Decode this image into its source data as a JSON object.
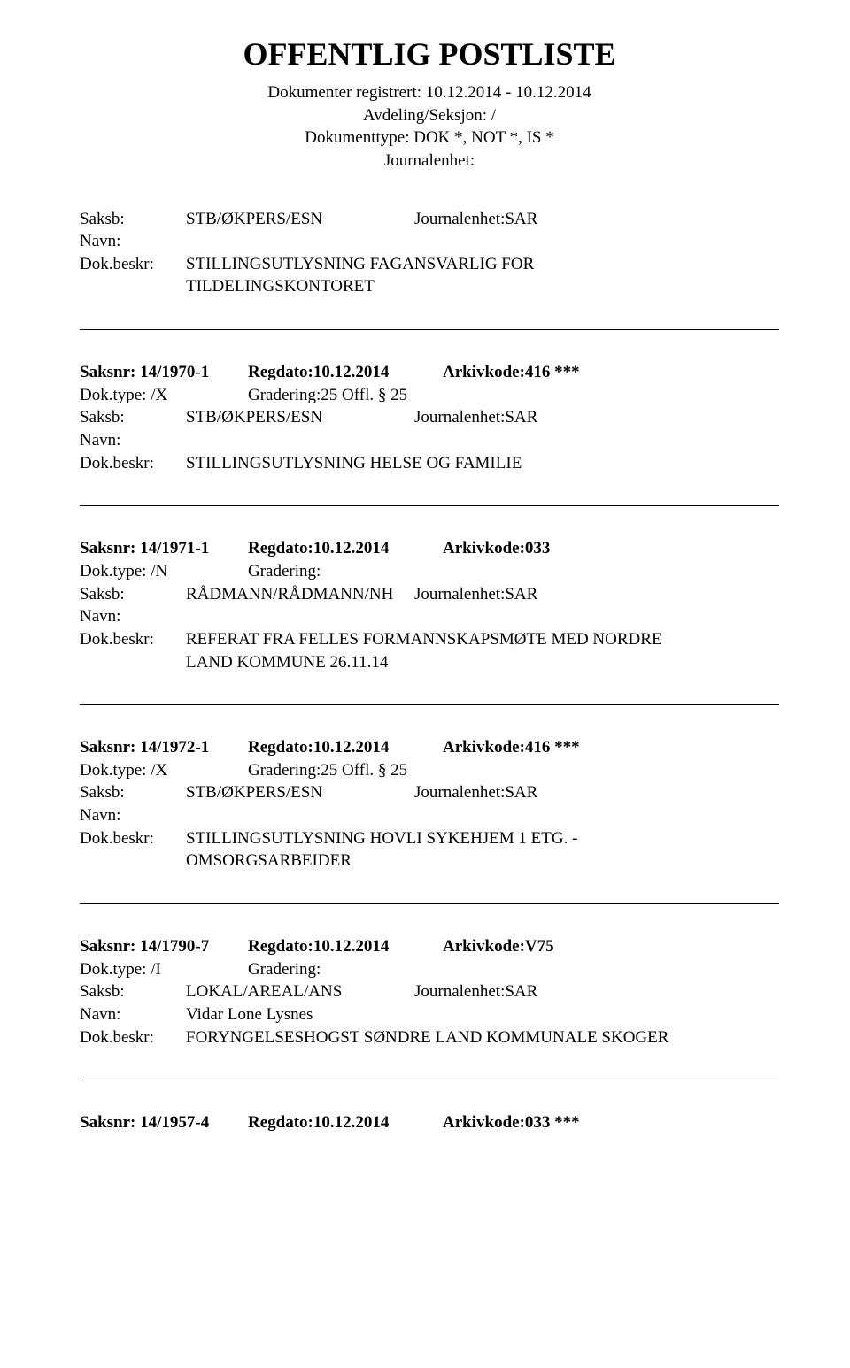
{
  "header": {
    "title": "OFFENTLIG POSTLISTE",
    "line1": "Dokumenter registrert: 10.12.2014 - 10.12.2014",
    "line2": "Avdeling/Seksjon: /",
    "line3": "Dokumenttype: DOK *, NOT *, IS *",
    "line4": "Journalenhet:"
  },
  "labels": {
    "saksb": "Saksb:",
    "navn": "Navn:",
    "dokbeskr": "Dok.beskr:",
    "doktype": "Dok.type:",
    "gradering": "Gradering:"
  },
  "first": {
    "saksb_val": "STB/ØKPERS/ESN",
    "journalenhet": "Journalenhet:SAR",
    "navn_val": "",
    "dokbeskr_l1": "STILLINGSUTLYSNING FAGANSVARLIG FOR",
    "dokbeskr_l2": "TILDELINGSKONTORET"
  },
  "entries": [
    {
      "saksnr": "Saksnr: 14/1970-1",
      "regdato": "Regdato:10.12.2014",
      "arkiv": "Arkivkode:416 ***",
      "doktype": "Dok.type: /X",
      "gradering": "Gradering:25 Offl. § 25",
      "saksb_val": "STB/ØKPERS/ESN",
      "journalenhet": "Journalenhet:SAR",
      "navn_val": "",
      "dokbeskr_l1": "STILLINGSUTLYSNING HELSE OG FAMILIE",
      "dokbeskr_l2": ""
    },
    {
      "saksnr": "Saksnr: 14/1971-1",
      "regdato": "Regdato:10.12.2014",
      "arkiv": "Arkivkode:033",
      "doktype": "Dok.type: /N",
      "gradering": "Gradering:",
      "saksb_val": "RÅDMANN/RÅDMANN/NH",
      "journalenhet": "Journalenhet:SAR",
      "navn_val": "",
      "dokbeskr_l1": "REFERAT FRA FELLES FORMANNSKAPSMØTE MED NORDRE",
      "dokbeskr_l2": "LAND KOMMUNE 26.11.14"
    },
    {
      "saksnr": "Saksnr: 14/1972-1",
      "regdato": "Regdato:10.12.2014",
      "arkiv": "Arkivkode:416 ***",
      "doktype": "Dok.type: /X",
      "gradering": "Gradering:25 Offl. § 25",
      "saksb_val": "STB/ØKPERS/ESN",
      "journalenhet": "Journalenhet:SAR",
      "navn_val": "",
      "dokbeskr_l1": "STILLINGSUTLYSNING HOVLI SYKEHJEM 1 ETG. -",
      "dokbeskr_l2": "OMSORGSARBEIDER"
    },
    {
      "saksnr": "Saksnr: 14/1790-7",
      "regdato": "Regdato:10.12.2014",
      "arkiv": "Arkivkode:V75",
      "doktype": "Dok.type: /I",
      "gradering": "Gradering:",
      "saksb_val": "LOKAL/AREAL/ANS",
      "journalenhet": "Journalenhet:SAR",
      "navn_val": "Vidar Lone Lysnes",
      "dokbeskr_l1": "FORYNGELSESHOGST SØNDRE LAND KOMMUNALE SKOGER",
      "dokbeskr_l2": ""
    }
  ],
  "last_partial": {
    "saksnr": "Saksnr: 14/1957-4",
    "regdato": "Regdato:10.12.2014",
    "arkiv": "Arkivkode:033 ***"
  }
}
